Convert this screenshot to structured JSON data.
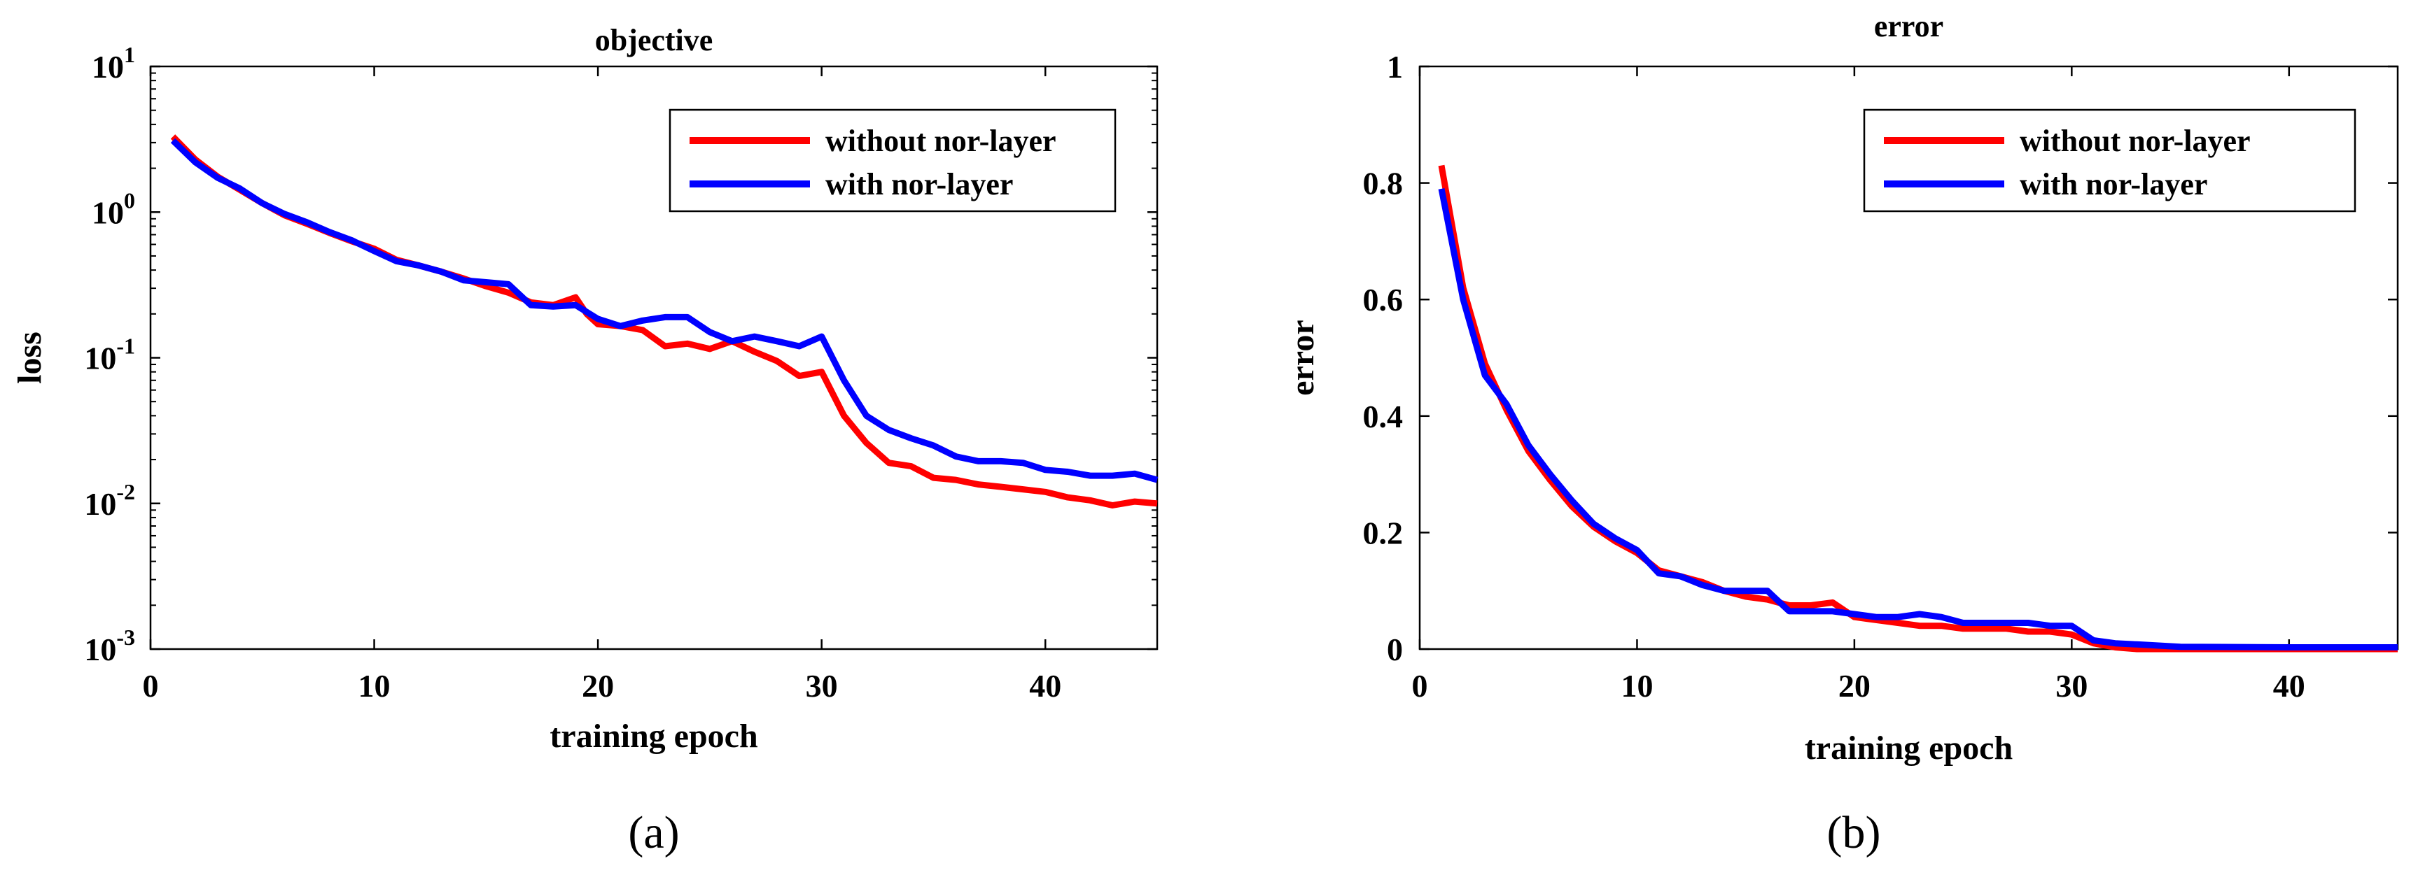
{
  "chart_data": [
    {
      "type": "line",
      "panel_label": "(a)",
      "title": "objective",
      "xlabel": "training epoch",
      "ylabel": "loss",
      "yscale": "log",
      "xlim": [
        0,
        45
      ],
      "ylim": [
        0.001,
        10
      ],
      "xticks": [
        0,
        10,
        20,
        30,
        40
      ],
      "xtick_labels": [
        "0",
        "10",
        "20",
        "30",
        "40"
      ],
      "yticks": [
        {
          "value": 10,
          "base": "10",
          "exp": "1"
        },
        {
          "value": 1,
          "base": "10",
          "exp": "0"
        },
        {
          "value": 0.1,
          "base": "10",
          "exp": "-1"
        },
        {
          "value": 0.01,
          "base": "10",
          "exp": "-2"
        },
        {
          "value": 0.001,
          "base": "10",
          "exp": "-3"
        }
      ],
      "grid": false,
      "legend_position": "top-right",
      "series": [
        {
          "name": "without nor-layer",
          "color": "#ff0000",
          "points": [
            [
              1,
              3.3
            ],
            [
              2,
              2.3
            ],
            [
              3,
              1.75
            ],
            [
              4,
              1.42
            ],
            [
              5,
              1.15
            ],
            [
              6,
              0.95
            ],
            [
              7,
              0.83
            ],
            [
              8,
              0.72
            ],
            [
              9,
              0.63
            ],
            [
              10,
              0.56
            ],
            [
              11,
              0.47
            ],
            [
              12,
              0.43
            ],
            [
              13,
              0.39
            ],
            [
              14,
              0.35
            ],
            [
              15,
              0.31
            ],
            [
              16,
              0.28
            ],
            [
              17,
              0.24
            ],
            [
              18,
              0.23
            ],
            [
              19,
              0.26
            ],
            [
              19.5,
              0.2
            ],
            [
              20,
              0.17
            ],
            [
              21,
              0.165
            ],
            [
              22,
              0.155
            ],
            [
              23,
              0.12
            ],
            [
              24,
              0.125
            ],
            [
              25,
              0.115
            ],
            [
              26,
              0.13
            ],
            [
              27,
              0.11
            ],
            [
              28,
              0.095
            ],
            [
              29,
              0.075
            ],
            [
              30,
              0.08
            ],
            [
              31,
              0.04
            ],
            [
              32,
              0.026
            ],
            [
              33,
              0.019
            ],
            [
              34,
              0.018
            ],
            [
              35,
              0.015
            ],
            [
              36,
              0.0145
            ],
            [
              37,
              0.0135
            ],
            [
              38,
              0.013
            ],
            [
              39,
              0.0125
            ],
            [
              40,
              0.012
            ],
            [
              41,
              0.011
            ],
            [
              42,
              0.0105
            ],
            [
              43,
              0.0097
            ],
            [
              44,
              0.0103
            ],
            [
              45,
              0.01
            ]
          ]
        },
        {
          "name": "with nor-layer",
          "color": "#0000ff",
          "points": [
            [
              1,
              3.1
            ],
            [
              2,
              2.2
            ],
            [
              3,
              1.72
            ],
            [
              4,
              1.45
            ],
            [
              5,
              1.15
            ],
            [
              6,
              0.97
            ],
            [
              7,
              0.85
            ],
            [
              8,
              0.73
            ],
            [
              9,
              0.64
            ],
            [
              10,
              0.54
            ],
            [
              11,
              0.46
            ],
            [
              12,
              0.43
            ],
            [
              13,
              0.39
            ],
            [
              14,
              0.34
            ],
            [
              15,
              0.33
            ],
            [
              16,
              0.32
            ],
            [
              17,
              0.23
            ],
            [
              18,
              0.225
            ],
            [
              19,
              0.23
            ],
            [
              20,
              0.185
            ],
            [
              21,
              0.165
            ],
            [
              22,
              0.18
            ],
            [
              23,
              0.19
            ],
            [
              24,
              0.19
            ],
            [
              25,
              0.15
            ],
            [
              26,
              0.13
            ],
            [
              27,
              0.14
            ],
            [
              28,
              0.13
            ],
            [
              29,
              0.12
            ],
            [
              30,
              0.14
            ],
            [
              31,
              0.07
            ],
            [
              32,
              0.04
            ],
            [
              33,
              0.032
            ],
            [
              34,
              0.028
            ],
            [
              35,
              0.025
            ],
            [
              36,
              0.021
            ],
            [
              37,
              0.0195
            ],
            [
              38,
              0.0195
            ],
            [
              39,
              0.019
            ],
            [
              40,
              0.017
            ],
            [
              41,
              0.0165
            ],
            [
              42,
              0.0155
            ],
            [
              43,
              0.0155
            ],
            [
              44,
              0.016
            ],
            [
              45,
              0.0145
            ]
          ]
        }
      ]
    },
    {
      "type": "line",
      "panel_label": "(b)",
      "title": "error",
      "xlabel": "training epoch",
      "ylabel": "error",
      "yscale": "linear",
      "xlim": [
        0,
        45
      ],
      "ylim": [
        0,
        1
      ],
      "xticks": [
        0,
        10,
        20,
        30,
        40
      ],
      "xtick_labels": [
        "0",
        "10",
        "20",
        "30",
        "40"
      ],
      "yticks": [
        0,
        0.2,
        0.4,
        0.6,
        0.8,
        1
      ],
      "ytick_labels": [
        "0",
        "0.2",
        "0.4",
        "0.6",
        "0.8",
        "1"
      ],
      "grid": false,
      "legend_position": "top-right",
      "series": [
        {
          "name": "without nor-layer",
          "color": "#ff0000",
          "points": [
            [
              1,
              0.83
            ],
            [
              2,
              0.62
            ],
            [
              3,
              0.49
            ],
            [
              4,
              0.41
            ],
            [
              5,
              0.34
            ],
            [
              6,
              0.29
            ],
            [
              7,
              0.245
            ],
            [
              8,
              0.21
            ],
            [
              9,
              0.185
            ],
            [
              10,
              0.165
            ],
            [
              11,
              0.135
            ],
            [
              12,
              0.125
            ],
            [
              13,
              0.115
            ],
            [
              14,
              0.1
            ],
            [
              15,
              0.09
            ],
            [
              16,
              0.085
            ],
            [
              17,
              0.075
            ],
            [
              18,
              0.075
            ],
            [
              19,
              0.08
            ],
            [
              20,
              0.055
            ],
            [
              21,
              0.05
            ],
            [
              22,
              0.045
            ],
            [
              23,
              0.04
            ],
            [
              24,
              0.04
            ],
            [
              25,
              0.035
            ],
            [
              26,
              0.035
            ],
            [
              27,
              0.035
            ],
            [
              28,
              0.03
            ],
            [
              29,
              0.03
            ],
            [
              30,
              0.025
            ],
            [
              31,
              0.01
            ],
            [
              32,
              0.003
            ],
            [
              33,
              0.0
            ],
            [
              34,
              0.0
            ],
            [
              35,
              0.0
            ],
            [
              40,
              0.0
            ],
            [
              45,
              0.0
            ]
          ]
        },
        {
          "name": "with nor-layer",
          "color": "#0000ff",
          "points": [
            [
              1,
              0.79
            ],
            [
              2,
              0.6
            ],
            [
              3,
              0.47
            ],
            [
              4,
              0.42
            ],
            [
              5,
              0.35
            ],
            [
              6,
              0.3
            ],
            [
              7,
              0.255
            ],
            [
              8,
              0.215
            ],
            [
              9,
              0.19
            ],
            [
              10,
              0.17
            ],
            [
              11,
              0.13
            ],
            [
              12,
              0.125
            ],
            [
              13,
              0.11
            ],
            [
              14,
              0.1
            ],
            [
              15,
              0.1
            ],
            [
              16,
              0.1
            ],
            [
              17,
              0.065
            ],
            [
              18,
              0.065
            ],
            [
              19,
              0.065
            ],
            [
              20,
              0.06
            ],
            [
              21,
              0.055
            ],
            [
              22,
              0.055
            ],
            [
              23,
              0.06
            ],
            [
              24,
              0.055
            ],
            [
              25,
              0.045
            ],
            [
              26,
              0.045
            ],
            [
              27,
              0.045
            ],
            [
              28,
              0.045
            ],
            [
              29,
              0.04
            ],
            [
              30,
              0.04
            ],
            [
              31,
              0.015
            ],
            [
              32,
              0.01
            ],
            [
              33,
              0.008
            ],
            [
              34,
              0.006
            ],
            [
              35,
              0.004
            ],
            [
              40,
              0.003
            ],
            [
              45,
              0.003
            ]
          ]
        }
      ]
    }
  ]
}
